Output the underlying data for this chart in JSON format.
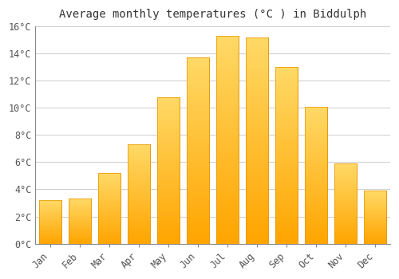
{
  "title": "Average monthly temperatures (°C ) in Biddulph",
  "months": [
    "Jan",
    "Feb",
    "Mar",
    "Apr",
    "May",
    "Jun",
    "Jul",
    "Aug",
    "Sep",
    "Oct",
    "Nov",
    "Dec"
  ],
  "temperatures": [
    3.2,
    3.3,
    5.2,
    7.3,
    10.8,
    13.7,
    15.3,
    15.2,
    13.0,
    10.1,
    5.9,
    3.9
  ],
  "bar_color_top": "#FFD966",
  "bar_color_bottom": "#FFA500",
  "bar_edge_color": "#E89500",
  "ylim": [
    0,
    16
  ],
  "yticks": [
    0,
    2,
    4,
    6,
    8,
    10,
    12,
    14,
    16
  ],
  "background_color": "#FFFFFF",
  "grid_color": "#CCCCCC",
  "title_fontsize": 10,
  "tick_fontsize": 8.5
}
